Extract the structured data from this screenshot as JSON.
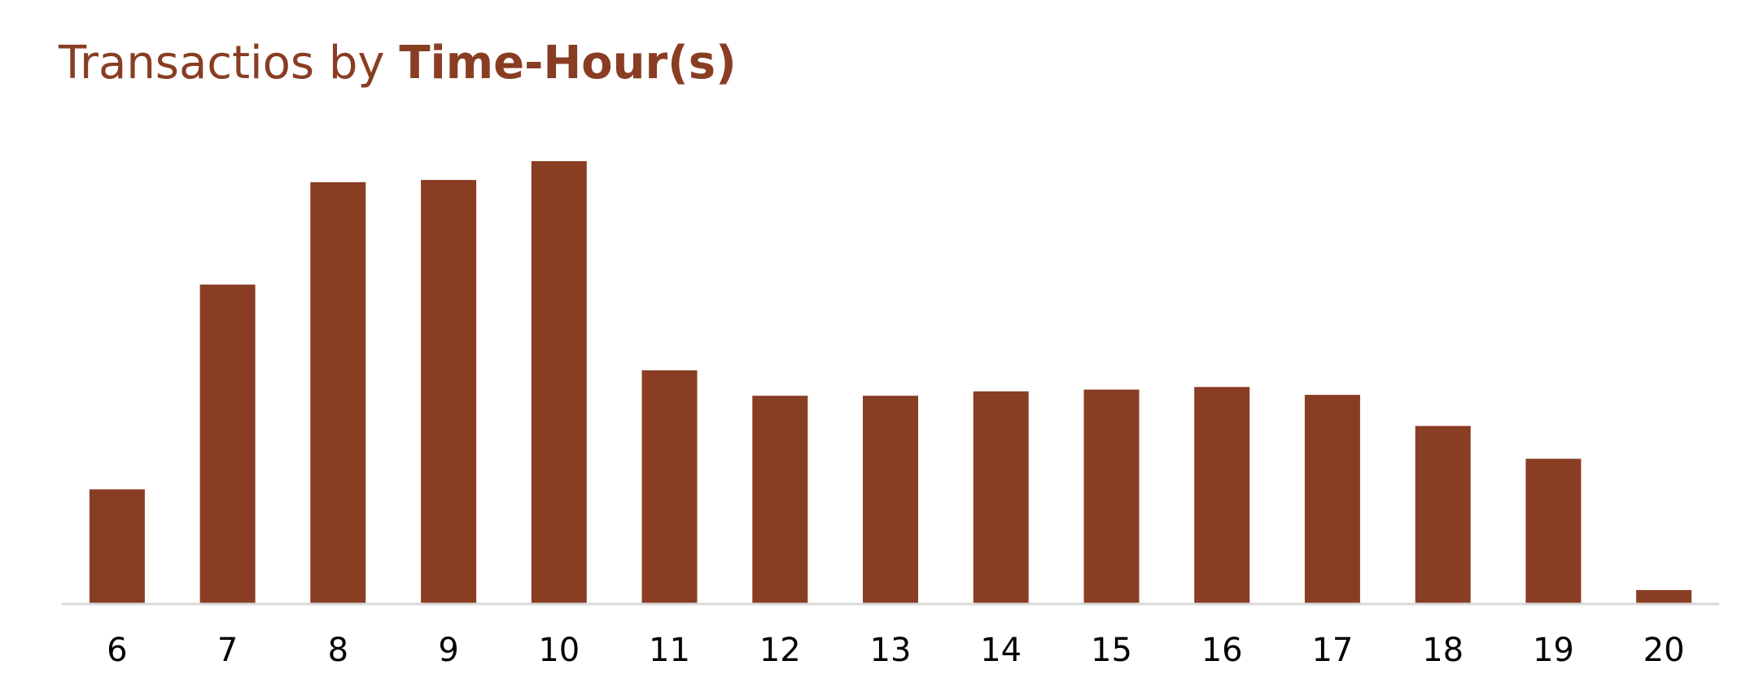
{
  "chart_data": {
    "type": "bar",
    "title_prefix": "Transactios by",
    "title_bold": "Time-Hour(s)",
    "xlabel": "",
    "ylabel": "",
    "categories": [
      "6",
      "7",
      "8",
      "9",
      "10",
      "11",
      "12",
      "13",
      "14",
      "15",
      "16",
      "17",
      "18",
      "19",
      "20"
    ],
    "values": [
      260,
      728,
      962,
      967,
      1010,
      532,
      474,
      474,
      484,
      488,
      494,
      476,
      405,
      330,
      30
    ],
    "ylim": [
      0,
      1100
    ],
    "grid": false,
    "legend": "none",
    "bar_color": "#893D23",
    "axis_color": "#D9D9D9"
  }
}
